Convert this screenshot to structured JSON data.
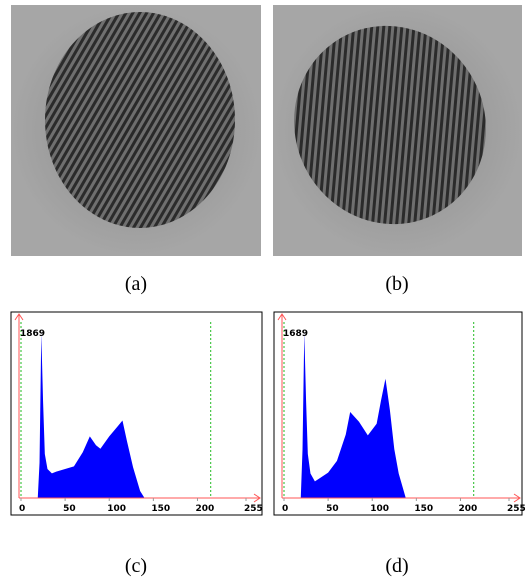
{
  "figure": {
    "captions": [
      "(a)",
      "(b)",
      "(c)",
      "(d)"
    ]
  },
  "chart_data": [
    {
      "type": "area",
      "color": "#0000ff",
      "peak_label": "1869",
      "x": [
        0,
        10,
        19,
        21,
        23,
        25,
        27,
        30,
        35,
        40,
        50,
        60,
        70,
        78,
        85,
        90,
        100,
        110,
        115,
        120,
        127,
        135,
        140,
        150,
        200,
        255
      ],
      "values": [
        0,
        0,
        0,
        400,
        1869,
        1100,
        500,
        330,
        280,
        300,
        330,
        360,
        520,
        700,
        600,
        560,
        700,
        820,
        880,
        650,
        350,
        80,
        0,
        0,
        0,
        0
      ],
      "xlim": [
        0,
        255
      ],
      "ylim": [
        0,
        2000
      ],
      "xticks": [
        0,
        50,
        100,
        150,
        200,
        255
      ],
      "xlines": [
        0,
        215
      ]
    },
    {
      "type": "area",
      "color": "#0000ff",
      "peak_label": "1689",
      "x": [
        0,
        10,
        19,
        21,
        23,
        25,
        27,
        30,
        35,
        40,
        50,
        60,
        70,
        75,
        85,
        95,
        105,
        110,
        115,
        120,
        125,
        130,
        138,
        150,
        200,
        255
      ],
      "values": [
        0,
        0,
        0,
        500,
        1689,
        1000,
        450,
        250,
        170,
        200,
        260,
        380,
        650,
        880,
        780,
        640,
        760,
        1000,
        1220,
        900,
        500,
        250,
        0,
        0,
        0,
        0
      ],
      "xlim": [
        0,
        255
      ],
      "ylim": [
        0,
        1800
      ],
      "xticks": [
        0,
        50,
        100,
        150,
        200,
        255
      ],
      "xlines": [
        0,
        215
      ]
    }
  ]
}
